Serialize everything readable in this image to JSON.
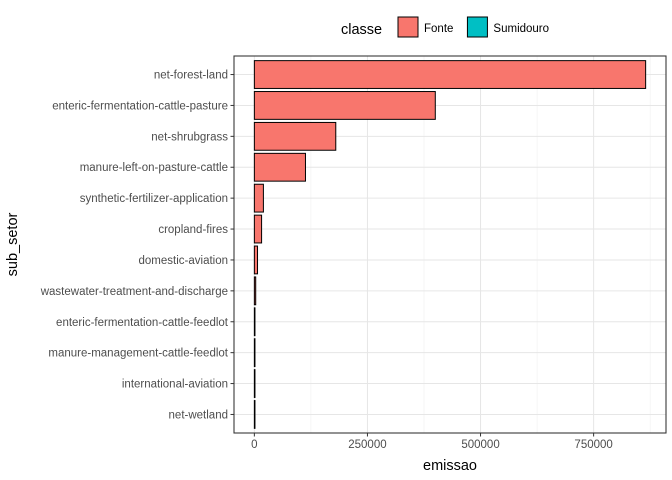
{
  "chart_data": {
    "type": "bar",
    "orientation": "horizontal",
    "xlabel": "emissao",
    "ylabel": "sub_setor",
    "xlim": [
      -45000,
      910000
    ],
    "x_ticks": [
      0,
      250000,
      500000,
      750000
    ],
    "x_tick_labels": [
      "0",
      "250000",
      "500000",
      "750000"
    ],
    "grid": true,
    "legend": {
      "title": "classe",
      "position": "top",
      "entries": [
        {
          "label": "Fonte",
          "color": "#F8766D"
        },
        {
          "label": "Sumidouro",
          "color": "#00BFC4"
        }
      ]
    },
    "categories": [
      "net-forest-land",
      "enteric-fermentation-cattle-pasture",
      "net-shrubgrass",
      "manure-left-on-pasture-cattle",
      "synthetic-fertilizer-application",
      "cropland-fires",
      "domestic-aviation",
      "wastewater-treatment-and-discharge",
      "enteric-fermentation-cattle-feedlot",
      "manure-management-cattle-feedlot",
      "international-aviation",
      "net-wetland"
    ],
    "series": [
      {
        "name": "Fonte",
        "color": "#F8766D",
        "values": [
          865000,
          400000,
          180000,
          113000,
          20000,
          16000,
          7000,
          3000,
          1000,
          500,
          300,
          100
        ]
      }
    ]
  }
}
